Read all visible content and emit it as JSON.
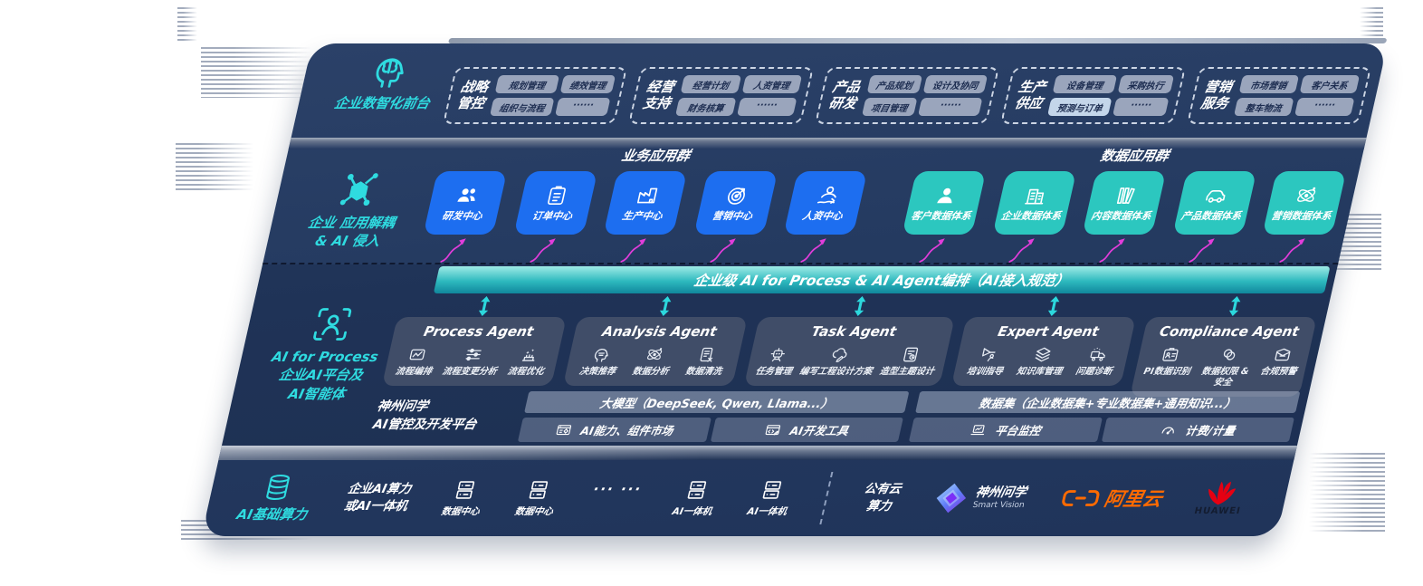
{
  "colors": {
    "slab_navy": "#243a60",
    "business_blue": "#1d6ef0",
    "data_teal": "#2cc7bf",
    "orchestration_teal": "#2db9be",
    "agent_panel_gray": "#404d68",
    "pill_gray": "#9aa5bc",
    "accent_cyan": "#2fdbe0",
    "arrow_magenta": "#e23ddb",
    "alibaba_orange": "#ff6a00",
    "huawei_red": "#e60012"
  },
  "front_layer": {
    "label": "企业数智化前台",
    "icon": "brain-head",
    "groups": [
      {
        "name_line1": "战略",
        "name_line2": "管控",
        "tags": [
          "规划管理",
          "绩效管理",
          "组织与流程",
          "······"
        ]
      },
      {
        "name_line1": "经营",
        "name_line2": "支持",
        "tags": [
          "经营计划",
          "人资管理",
          "财务核算",
          "······"
        ]
      },
      {
        "name_line1": "产品",
        "name_line2": "研发",
        "tags": [
          "产品规划",
          "设计及协同",
          "项目管理",
          "······"
        ]
      },
      {
        "name_line1": "生产",
        "name_line2": "供应",
        "tags": [
          "设备管理",
          "采购执行",
          "预测与订单",
          "······"
        ]
      },
      {
        "name_line1": "营销",
        "name_line2": "服务",
        "tags": [
          "市场营销",
          "客户关系",
          "整车物流",
          "······"
        ]
      }
    ]
  },
  "decouple_layer": {
    "label_line1": "企业 应用解耦",
    "label_line2": "& AI 侵入",
    "icon": "molecule",
    "business_group": {
      "title": "业务应用群",
      "items": [
        {
          "label": "研发中心",
          "icon": "users"
        },
        {
          "label": "订单中心",
          "icon": "clipboard"
        },
        {
          "label": "生产中心",
          "icon": "factory"
        },
        {
          "label": "营销中心",
          "icon": "target"
        },
        {
          "label": "人资中心",
          "icon": "hr-people"
        }
      ]
    },
    "data_group": {
      "title": "数据应用群",
      "items": [
        {
          "label": "客户数据体系",
          "icon": "person"
        },
        {
          "label": "企业数据体系",
          "icon": "building"
        },
        {
          "label": "内容数据体系",
          "icon": "books"
        },
        {
          "label": "产品数据体系",
          "icon": "car"
        },
        {
          "label": "营销数据体系",
          "icon": "atom"
        }
      ]
    }
  },
  "ai_layer": {
    "label_line1": "AI for Process",
    "label_line2": "企业AI平台及",
    "label_line3": "AI智能体",
    "icon": "scan-person",
    "orchestration_bar": "企业级 AI for Process & AI Agent编排（AI接入规范）",
    "agents": [
      {
        "title": "Process Agent",
        "items": [
          {
            "label": "流程编排",
            "icon": "flow"
          },
          {
            "label": "流程变更分析",
            "icon": "sliders"
          },
          {
            "label": "流程优化",
            "icon": "optimize"
          }
        ]
      },
      {
        "title": "Analysis Agent",
        "items": [
          {
            "label": "决策推荐",
            "icon": "head-chat"
          },
          {
            "label": "数据分析",
            "icon": "atom"
          },
          {
            "label": "数据清洗",
            "icon": "doc-clean"
          }
        ]
      },
      {
        "title": "Task Agent",
        "items": [
          {
            "label": "任务管理",
            "icon": "robot"
          },
          {
            "label": "编写工程设计方案",
            "icon": "cloud-pen"
          },
          {
            "label": "造型主题设计",
            "icon": "design-board"
          }
        ]
      },
      {
        "title": "Expert Agent",
        "items": [
          {
            "label": "培训指导",
            "icon": "teach"
          },
          {
            "label": "知识库管理",
            "icon": "layers"
          },
          {
            "label": "问题诊断",
            "icon": "diagnose"
          }
        ]
      },
      {
        "title": "Compliance Agent",
        "items": [
          {
            "label": "PI数据识别",
            "icon": "id-card"
          },
          {
            "label": "数据权限 & 安全",
            "icon": "rings"
          },
          {
            "label": "合规预警",
            "icon": "mail"
          }
        ]
      }
    ],
    "platform": {
      "vendor_line1": "神州问学",
      "vendor_line2": "AI管控及开发平台",
      "model_bar": "大模型（DeepSeek, Qwen, Llama...）",
      "dataset_bar": "数据集（企业数据集+专业数据集+通用知识...）",
      "cells": [
        {
          "label": "AI能力、组件市场",
          "icon": "market"
        },
        {
          "label": "AI开发工具",
          "icon": "devtool"
        },
        {
          "label": "平台监控",
          "icon": "monitor"
        },
        {
          "label": "计费/计量",
          "icon": "gauge"
        }
      ]
    }
  },
  "infra_layer": {
    "label": "AI基础算力",
    "icon": "database",
    "compute_line1": "企业AI算力",
    "compute_line2": "或AI一体机",
    "nodes": [
      {
        "label": "数据中心",
        "icon": "server"
      },
      {
        "label": "数据中心",
        "icon": "server"
      },
      {
        "label": "AI一体机",
        "icon": "server"
      },
      {
        "label": "AI一体机",
        "icon": "server"
      }
    ],
    "dots": "··· ···",
    "public_cloud_line1": "公有云",
    "public_cloud_line2": "算力",
    "partners": {
      "smart_vision": {
        "name": "神州问学",
        "sub": "Smart Vision",
        "icon": "smart-vision-diamond"
      },
      "alibaba": {
        "name": "阿里云",
        "icon": "alibaba-brackets"
      },
      "huawei": {
        "name": "HUAWEI",
        "icon": "huawei-flower"
      }
    }
  }
}
